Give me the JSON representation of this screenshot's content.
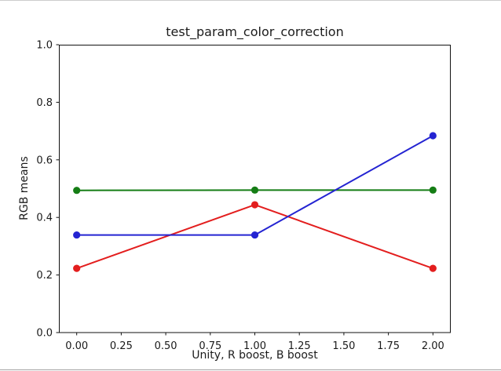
{
  "chart_data": {
    "type": "line",
    "title": "test_param_color_correction",
    "xlabel": "Unity, R boost, B boost",
    "ylabel": "RGB means",
    "x": [
      0.0,
      1.0,
      2.0
    ],
    "series": [
      {
        "name": "red",
        "color": "#e31e1e",
        "values": [
          0.223,
          0.444,
          0.223
        ]
      },
      {
        "name": "green",
        "color": "#157d15",
        "values": [
          0.494,
          0.495,
          0.495
        ]
      },
      {
        "name": "blue",
        "color": "#2424d2",
        "values": [
          0.339,
          0.339,
          0.684
        ]
      }
    ],
    "xticks": [
      0,
      0.25,
      0.5,
      0.75,
      1,
      1.25,
      1.5,
      1.75,
      2
    ],
    "xtick_labels": [
      "0.00",
      "0.25",
      "0.50",
      "0.75",
      "1.00",
      "1.25",
      "1.50",
      "1.75",
      "2.00"
    ],
    "yticks": [
      0,
      0.2,
      0.4,
      0.6,
      0.8,
      1
    ],
    "ytick_labels": [
      "0.0",
      "0.2",
      "0.4",
      "0.6",
      "0.8",
      "1.0"
    ],
    "xlim": [
      -0.1,
      2.1
    ],
    "ylim": [
      0,
      1
    ],
    "grid": false,
    "legend": false,
    "marker": "circle",
    "line_width": 2,
    "marker_radius": 4.6,
    "axis_color": "#111111",
    "background": "#ffffff"
  }
}
